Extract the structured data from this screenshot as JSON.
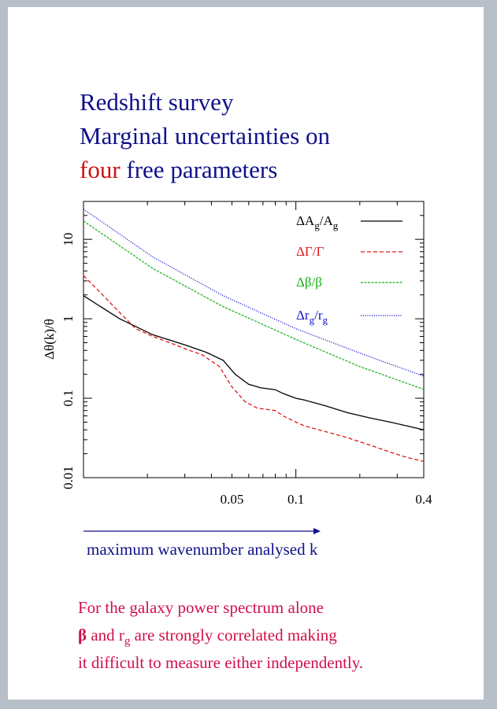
{
  "slide": {
    "title_line1": "Redshift survey",
    "title_line2": "Marginal uncertainties on",
    "title_line3_highlight": "four",
    "title_line3_rest": " free parameters",
    "arrow_label": "maximum wavenumber analysed k",
    "note_line1": "For the galaxy power spectrum alone",
    "note_line2_symbol": "β",
    "note_line2_a": "  and r",
    "note_line2_sub": "g",
    "note_line2_b": " are strongly correlated making",
    "note_line3": "it difficult to measure either independently."
  },
  "colors": {
    "background": "#b7c0c8",
    "title": "#10108a",
    "title_highlight": "#d01010",
    "note": "#d0104a",
    "series_A": "#000000",
    "series_Gamma": "#e01818",
    "series_beta": "#10b010",
    "series_r": "#1010d0"
  },
  "chart_data": {
    "type": "line",
    "xscale": "log",
    "yscale": "log",
    "xlim": [
      0.01,
      0.4
    ],
    "ylim": [
      0.01,
      30
    ],
    "ylabel": "Δθ(k)/θ",
    "xticks": [
      {
        "value": 0.05,
        "label": "0.05"
      },
      {
        "value": 0.1,
        "label": "0.1"
      },
      {
        "value": 0.4,
        "label": "0.4"
      }
    ],
    "yticks": [
      {
        "value": 0.01,
        "label": "0.01"
      },
      {
        "value": 0.1,
        "label": "0.1"
      },
      {
        "value": 1,
        "label": "1"
      },
      {
        "value": 10,
        "label": "10"
      }
    ],
    "legend_position": "top-right",
    "series": [
      {
        "key": "A",
        "legend_main": "ΔA",
        "legend_sub": "g",
        "legend_slash": "/A",
        "legend_sub2": "g",
        "dash": "solid",
        "x": [
          0.01,
          0.0148,
          0.0212,
          0.03,
          0.0377,
          0.0455,
          0.0518,
          0.0599,
          0.0684,
          0.08,
          0.0868,
          0.1,
          0.1093,
          0.1379,
          0.1741,
          0.22,
          0.2775,
          0.3318,
          0.4
        ],
        "y": [
          1.95,
          1.0,
          0.63,
          0.47,
          0.38,
          0.3,
          0.2,
          0.15,
          0.135,
          0.128,
          0.115,
          0.1,
          0.095,
          0.08,
          0.066,
          0.057,
          0.05,
          0.045,
          0.04
        ]
      },
      {
        "key": "Gamma",
        "legend_main": "ΔΓ/Γ",
        "dash": "dashed",
        "x": [
          0.01,
          0.0115,
          0.0148,
          0.0176,
          0.0212,
          0.0255,
          0.03,
          0.0363,
          0.0437,
          0.0499,
          0.0577,
          0.0659,
          0.08,
          0.0868,
          0.1,
          0.1093,
          0.1379,
          0.1741,
          0.22,
          0.2775,
          0.3318,
          0.4
        ],
        "y": [
          3.5,
          2.4,
          1.2,
          0.75,
          0.6,
          0.5,
          0.42,
          0.35,
          0.25,
          0.14,
          0.09,
          0.075,
          0.07,
          0.06,
          0.05,
          0.045,
          0.038,
          0.032,
          0.026,
          0.021,
          0.018,
          0.016
        ]
      },
      {
        "key": "beta",
        "legend_main": "Δβ/β",
        "dash": "dashed-fine",
        "x": [
          0.01,
          0.0212,
          0.0455,
          0.1,
          0.2,
          0.3,
          0.4
        ],
        "y": [
          17,
          4.3,
          1.42,
          0.55,
          0.25,
          0.17,
          0.13
        ]
      },
      {
        "key": "r",
        "legend_main": "Δr",
        "legend_sub": "g",
        "legend_slash": "/r",
        "legend_sub2": "g",
        "dash": "dotted",
        "x": [
          0.01,
          0.0212,
          0.0455,
          0.1,
          0.2,
          0.3,
          0.4
        ],
        "y": [
          24,
          6.0,
          1.95,
          0.75,
          0.37,
          0.25,
          0.19
        ]
      }
    ]
  }
}
